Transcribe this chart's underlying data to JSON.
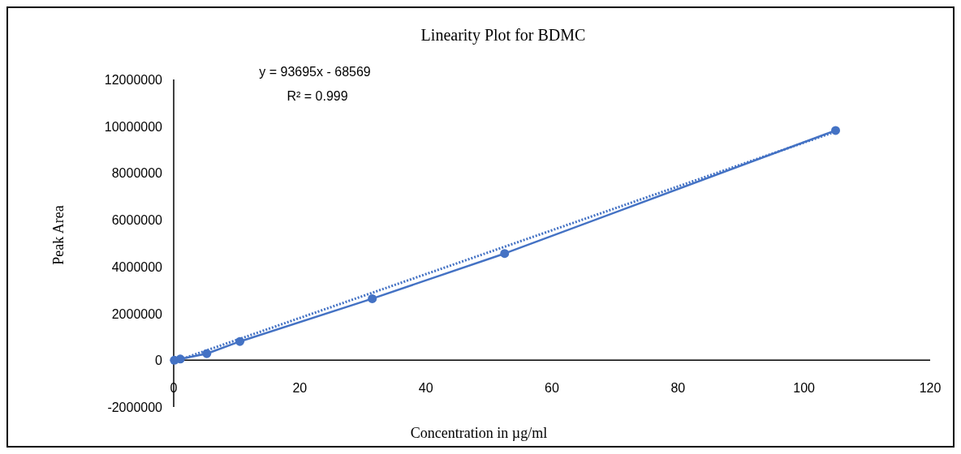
{
  "chart_data": {
    "type": "line",
    "title": "Linearity Plot for BDMC",
    "xlabel": "Concentration in µg/ml",
    "ylabel": "Peak Area",
    "xlim": [
      0,
      120
    ],
    "xticks": [
      0,
      20,
      40,
      60,
      80,
      100,
      120
    ],
    "ylim": [
      -2000000,
      12000000
    ],
    "yticks": [
      -2000000,
      0,
      2000000,
      4000000,
      6000000,
      8000000,
      10000000,
      12000000
    ],
    "grid": false,
    "annotations": [
      "y = 93695x - 68569",
      "R² = 0.999"
    ],
    "series": [
      {
        "color": "#4472c4",
        "marker": "circle",
        "line_style": "solid",
        "x": [
          0.1,
          1.05,
          5.25,
          10.5,
          31.5,
          52.5,
          105
        ],
        "values": [
          0,
          50000,
          280000,
          800000,
          2630000,
          4560000,
          9820000
        ]
      },
      {
        "color": "#4472c4",
        "marker": "none",
        "line_style": "dotted",
        "x": [
          0,
          105
        ],
        "values": [
          -70000,
          9770000
        ]
      }
    ]
  }
}
